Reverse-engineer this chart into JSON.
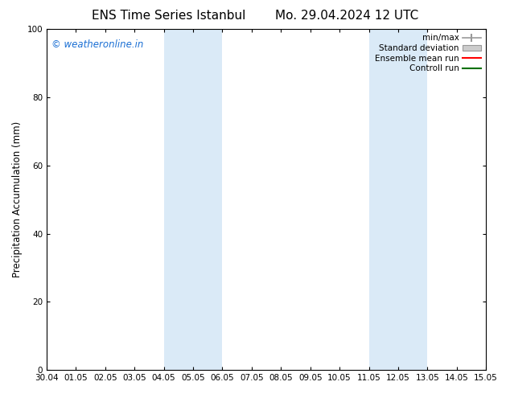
{
  "title_left": "ENS Time Series Istanbul",
  "title_right": "Mo. 29.04.2024 12 UTC",
  "ylabel": "Precipitation Accumulation (mm)",
  "ylim": [
    0,
    100
  ],
  "yticks": [
    0,
    20,
    40,
    60,
    80,
    100
  ],
  "x_tick_labels": [
    "30.04",
    "01.05",
    "02.05",
    "03.05",
    "04.05",
    "05.05",
    "06.05",
    "07.05",
    "08.05",
    "09.05",
    "10.05",
    "11.05",
    "12.05",
    "13.05",
    "14.05",
    "15.05"
  ],
  "x_tick_positions": [
    0,
    1,
    2,
    3,
    4,
    5,
    6,
    7,
    8,
    9,
    10,
    11,
    12,
    13,
    14,
    15
  ],
  "shaded_regions": [
    {
      "x_start": 4,
      "x_end": 6,
      "color": "#daeaf7"
    },
    {
      "x_start": 11,
      "x_end": 13,
      "color": "#daeaf7"
    }
  ],
  "watermark_text": "© weatheronline.in",
  "watermark_color": "#1a6fd4",
  "legend_entries": [
    {
      "label": "min/max"
    },
    {
      "label": "Standard deviation"
    },
    {
      "label": "Ensemble mean run"
    },
    {
      "label": "Controll run"
    }
  ],
  "background_color": "#ffffff",
  "plot_bg_color": "#ffffff",
  "title_fontsize": 11,
  "tick_fontsize": 7.5,
  "ylabel_fontsize": 8.5,
  "legend_fontsize": 7.5,
  "watermark_fontsize": 8.5
}
